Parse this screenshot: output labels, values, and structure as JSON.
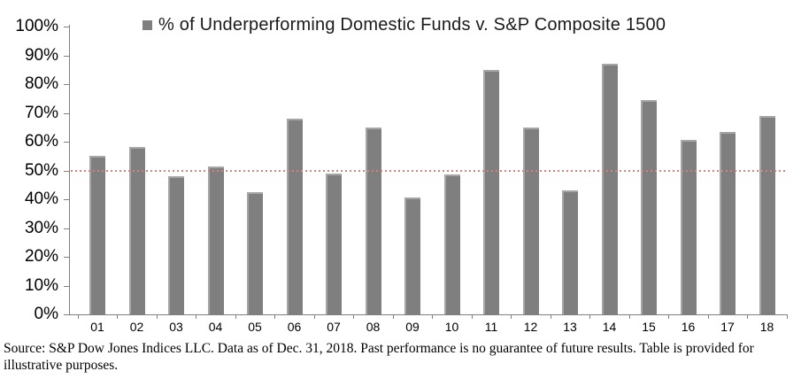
{
  "chart_data": {
    "type": "bar",
    "title": "% of Underperforming Domestic Funds v. S&P Composite 1500",
    "categories": [
      "01",
      "02",
      "03",
      "04",
      "05",
      "06",
      "07",
      "08",
      "09",
      "10",
      "11",
      "12",
      "13",
      "14",
      "15",
      "16",
      "17",
      "18"
    ],
    "values": [
      55,
      58,
      48,
      51.5,
      42.5,
      68,
      49,
      65,
      40.5,
      48.5,
      85,
      65,
      43,
      87,
      74.5,
      60.5,
      63.5,
      69
    ],
    "xlabel": "",
    "ylabel": "",
    "ylim": [
      0,
      100
    ],
    "y_tick_values": [
      0,
      10,
      20,
      30,
      40,
      50,
      60,
      70,
      80,
      90,
      100
    ],
    "y_tick_labels": [
      "0%",
      "10%",
      "20%",
      "30%",
      "40%",
      "50%",
      "60%",
      "70%",
      "80%",
      "90%",
      "100%"
    ],
    "grid": "off",
    "legend_position": "top",
    "bar_color": "#7f7f7f",
    "bar_highlight_color": "#a6a6a6",
    "axis_color": "#808080",
    "reference_line": {
      "value": 50,
      "style": "dotted",
      "color": "#d4827f"
    }
  },
  "legend": {
    "swatch_color": "#7f7f7f"
  },
  "footer": {
    "line1": "Source: S&P Dow Jones Indices LLC. Data as of Dec. 31, 2018. Past performance is no guarantee of future results. Table is provided for",
    "line2": "illustrative purposes."
  }
}
